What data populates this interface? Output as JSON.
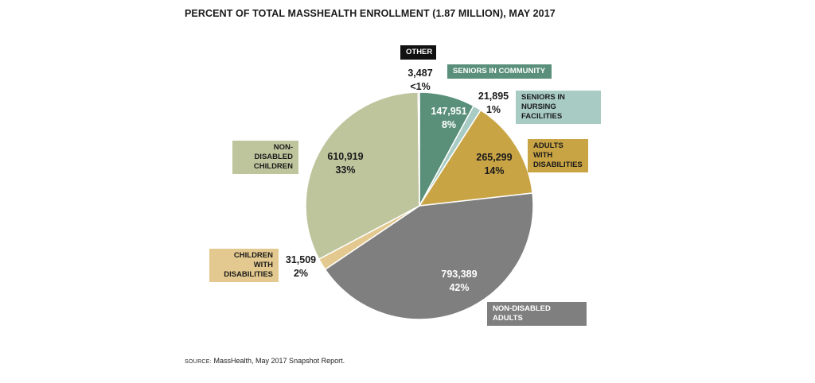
{
  "title": "PERCENT OF TOTAL MASSHEALTH ENROLLMENT (1.87 MILLION), MAY 2017",
  "source": {
    "tag": "SOURCE:",
    "text": "MassHealth, May 2017 Snapshot Report."
  },
  "chart_data": {
    "type": "pie",
    "title": "PERCENT OF TOTAL MASSHEALTH ENROLLMENT (1.87 MILLION), MAY 2017",
    "total_label": "1.87 MILLION",
    "slices": [
      {
        "id": "seniors-community",
        "label": "SENIORS IN COMMUNITY",
        "value": 147951,
        "value_label": "147,951",
        "pct_label": "8%",
        "color": "#5a9079",
        "label_bg": "#5a9079",
        "label_text_color": "#ffffff",
        "value_text_color": "#ffffff"
      },
      {
        "id": "seniors-nursing",
        "label": "SENIORS IN NURSING FACILITIES",
        "value": 21895,
        "value_label": "21,895",
        "pct_label": "1%",
        "color": "#a8cbc4",
        "label_bg": "#a8cbc4",
        "label_text_color": "#1a1a1a",
        "value_text_color": "#1a1a1a"
      },
      {
        "id": "adults-disabilities",
        "label": "ADULTS WITH DISABILITIES",
        "value": 265299,
        "value_label": "265,299",
        "pct_label": "14%",
        "color": "#c9a445",
        "label_bg": "#c9a445",
        "label_text_color": "#1a1a1a",
        "value_text_color": "#1a1a1a"
      },
      {
        "id": "non-disabled-adults",
        "label": "NON-DISABLED ADULTS",
        "value": 793389,
        "value_label": "793,389",
        "pct_label": "42%",
        "color": "#7f7f7f",
        "label_bg": "#7f7f7f",
        "label_text_color": "#ffffff",
        "value_text_color": "#ffffff"
      },
      {
        "id": "children-disabilities",
        "label": "CHILDREN WITH DISABILITIES",
        "value": 31509,
        "value_label": "31,509",
        "pct_label": "2%",
        "color": "#e3c98f",
        "label_bg": "#e3c98f",
        "label_text_color": "#1a1a1a",
        "value_text_color": "#1a1a1a"
      },
      {
        "id": "non-disabled-children",
        "label": "NON-DISABLED CHILDREN",
        "value": 610919,
        "value_label": "610,919",
        "pct_label": "33%",
        "color": "#bec59d",
        "label_bg": "#bec59d",
        "label_text_color": "#1a1a1a",
        "value_text_color": "#1a1a1a"
      },
      {
        "id": "other",
        "label": "OTHER",
        "value": 3487,
        "value_label": "3,487",
        "pct_label": "<1%",
        "color": "#111111",
        "label_bg": "#111111",
        "label_text_color": "#ffffff",
        "value_text_color": "#1a1a1a"
      }
    ]
  }
}
